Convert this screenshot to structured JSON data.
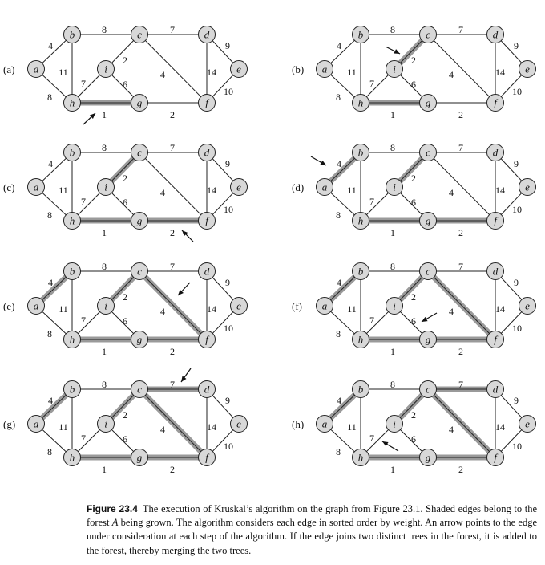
{
  "caption": {
    "label": "Figure 23.4",
    "text_before": "The execution of Kruskal’s algorithm on the graph from Figure 23.1. Shaded edges belong to the forest ",
    "forest_name": "A",
    "text_after": " being grown. The algorithm considers each edge in sorted order by weight. An arrow points to the edge under consideration at each step of the algorithm. If the edge joins two distinct trees in the forest, it is added to the forest, thereby merging the two trees."
  },
  "graph": {
    "nodes": [
      "a",
      "b",
      "c",
      "d",
      "e",
      "f",
      "g",
      "h",
      "i"
    ],
    "edges": [
      {
        "id": "ab",
        "from": "a",
        "to": "b",
        "weight": "4"
      },
      {
        "id": "ah",
        "from": "a",
        "to": "h",
        "weight": "8"
      },
      {
        "id": "bc",
        "from": "b",
        "to": "c",
        "weight": "8"
      },
      {
        "id": "bh",
        "from": "b",
        "to": "h",
        "weight": "11"
      },
      {
        "id": "cd",
        "from": "c",
        "to": "d",
        "weight": "7"
      },
      {
        "id": "ci",
        "from": "c",
        "to": "i",
        "weight": "2"
      },
      {
        "id": "cf",
        "from": "c",
        "to": "f",
        "weight": "4"
      },
      {
        "id": "de",
        "from": "d",
        "to": "e",
        "weight": "9"
      },
      {
        "id": "df",
        "from": "d",
        "to": "f",
        "weight": "14"
      },
      {
        "id": "ef",
        "from": "e",
        "to": "f",
        "weight": "10"
      },
      {
        "id": "fg",
        "from": "f",
        "to": "g",
        "weight": "2"
      },
      {
        "id": "gh",
        "from": "g",
        "to": "h",
        "weight": "1"
      },
      {
        "id": "gi",
        "from": "g",
        "to": "i",
        "weight": "6"
      },
      {
        "id": "hi",
        "from": "h",
        "to": "i",
        "weight": "7"
      }
    ]
  },
  "panels": [
    {
      "label": "(a)",
      "shaded": [
        "gh"
      ],
      "arrow_edge": "gh"
    },
    {
      "label": "(b)",
      "shaded": [
        "gh",
        "ci"
      ],
      "arrow_edge": "ci"
    },
    {
      "label": "(c)",
      "shaded": [
        "gh",
        "ci",
        "fg"
      ],
      "arrow_edge": "fg"
    },
    {
      "label": "(d)",
      "shaded": [
        "gh",
        "ci",
        "fg",
        "ab"
      ],
      "arrow_edge": "ab"
    },
    {
      "label": "(e)",
      "shaded": [
        "gh",
        "ci",
        "fg",
        "ab",
        "cf"
      ],
      "arrow_edge": "cf"
    },
    {
      "label": "(f)",
      "shaded": [
        "gh",
        "ci",
        "fg",
        "ab",
        "cf"
      ],
      "arrow_edge": "gi"
    },
    {
      "label": "(g)",
      "shaded": [
        "gh",
        "ci",
        "fg",
        "ab",
        "cf",
        "cd"
      ],
      "arrow_edge": "cd"
    },
    {
      "label": "(h)",
      "shaded": [
        "gh",
        "ci",
        "fg",
        "ab",
        "cf",
        "cd"
      ],
      "arrow_edge": "hi"
    }
  ]
}
